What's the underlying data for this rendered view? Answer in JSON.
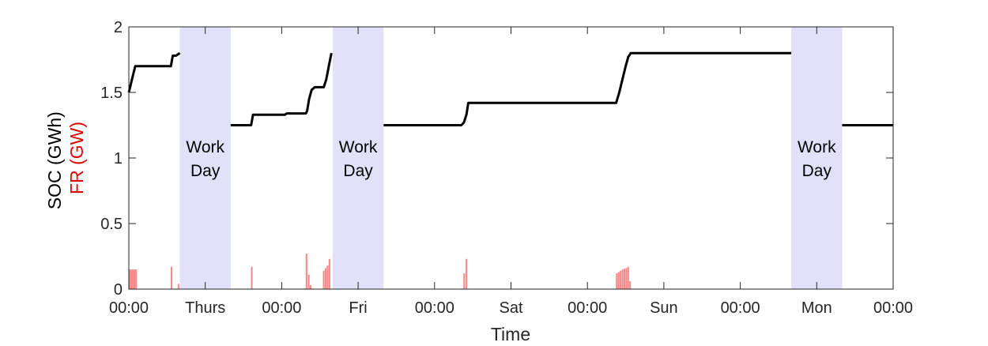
{
  "chart_data": {
    "type": "line",
    "title": "",
    "xlabel": "Time",
    "ylabel": {
      "part1": "SOC (GWh)",
      "part2": "FR (GW)",
      "part1_color": "#000000",
      "part2_color": "#e00000"
    },
    "xlim": [
      0,
      120
    ],
    "ylim": [
      0,
      2
    ],
    "y_ticks": [
      {
        "value": 0,
        "label": "0"
      },
      {
        "value": 0.5,
        "label": "0.5"
      },
      {
        "value": 1,
        "label": "1"
      },
      {
        "value": 1.5,
        "label": "1.5"
      },
      {
        "value": 2,
        "label": "2"
      }
    ],
    "x_ticks": [
      {
        "value": 0,
        "label": "00:00"
      },
      {
        "value": 12,
        "label": "Thurs"
      },
      {
        "value": 24,
        "label": "00:00"
      },
      {
        "value": 36,
        "label": "Fri"
      },
      {
        "value": 48,
        "label": "00:00"
      },
      {
        "value": 60,
        "label": "Sat"
      },
      {
        "value": 72,
        "label": "00:00"
      },
      {
        "value": 84,
        "label": "Sun"
      },
      {
        "value": 96,
        "label": "00:00"
      },
      {
        "value": 108,
        "label": "Mon"
      },
      {
        "value": 120,
        "label": "00:00"
      }
    ],
    "work_days": [
      {
        "start": 8,
        "end": 16,
        "label": [
          "Work",
          "Day"
        ]
      },
      {
        "start": 32,
        "end": 40,
        "label": [
          "Work",
          "Day"
        ]
      },
      {
        "start": 104,
        "end": 112,
        "label": [
          "Work",
          "Day"
        ]
      }
    ],
    "series": [
      {
        "name": "SOC",
        "color": "#000000",
        "segments": [
          [
            [
              0,
              1.5
            ],
            [
              0.3,
              1.56
            ],
            [
              0.6,
              1.62
            ],
            [
              1.0,
              1.7
            ],
            [
              6.6,
              1.7
            ],
            [
              6.9,
              1.78
            ],
            [
              7.4,
              1.78
            ],
            [
              8.0,
              1.8
            ]
          ],
          [
            [
              16.0,
              1.25
            ],
            [
              19.2,
              1.25
            ],
            [
              19.5,
              1.33
            ],
            [
              24.5,
              1.33
            ],
            [
              24.8,
              1.34
            ],
            [
              27.8,
              1.34
            ],
            [
              28.0,
              1.36
            ],
            [
              28.3,
              1.45
            ],
            [
              28.7,
              1.52
            ],
            [
              29.2,
              1.54
            ],
            [
              30.6,
              1.54
            ],
            [
              31.0,
              1.6
            ],
            [
              31.4,
              1.7
            ],
            [
              31.8,
              1.8
            ]
          ],
          [
            [
              40.0,
              1.25
            ],
            [
              52.2,
              1.25
            ],
            [
              52.6,
              1.27
            ],
            [
              53.0,
              1.33
            ],
            [
              53.3,
              1.42
            ],
            [
              76.5,
              1.42
            ],
            [
              77.0,
              1.5
            ],
            [
              77.5,
              1.6
            ],
            [
              78.0,
              1.7
            ],
            [
              78.4,
              1.77
            ],
            [
              78.8,
              1.8
            ],
            [
              104.0,
              1.8
            ]
          ],
          [
            [
              112.0,
              1.25
            ],
            [
              120.0,
              1.25
            ]
          ]
        ]
      },
      {
        "name": "FR",
        "color": "#f48a8a",
        "bar_width": 0.26,
        "bars": [
          [
            0.15,
            0.15
          ],
          [
            0.4,
            0.15
          ],
          [
            0.65,
            0.15
          ],
          [
            0.9,
            0.15
          ],
          [
            1.15,
            0.15
          ],
          [
            6.7,
            0.17
          ],
          [
            7.8,
            0.04
          ],
          [
            19.3,
            0.17
          ],
          [
            24.3,
            0.005
          ],
          [
            27.6,
            0.005
          ],
          [
            27.9,
            0.27
          ],
          [
            28.25,
            0.11
          ],
          [
            28.55,
            0.03
          ],
          [
            30.6,
            0.14
          ],
          [
            30.9,
            0.16
          ],
          [
            31.2,
            0.18
          ],
          [
            31.5,
            0.23
          ],
          [
            52.2,
            0.005
          ],
          [
            52.65,
            0.12
          ],
          [
            53.0,
            0.23
          ],
          [
            76.6,
            0.12
          ],
          [
            76.9,
            0.13
          ],
          [
            77.2,
            0.14
          ],
          [
            77.5,
            0.15
          ],
          [
            77.8,
            0.155
          ],
          [
            78.1,
            0.16
          ],
          [
            78.4,
            0.17
          ],
          [
            78.7,
            0.06
          ]
        ]
      }
    ],
    "grid": false,
    "legend": "none",
    "band_color": "#e1e1fa"
  }
}
